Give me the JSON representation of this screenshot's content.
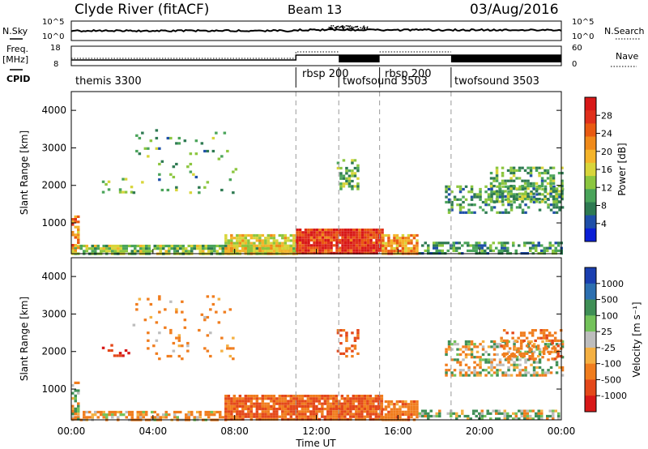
{
  "header": {
    "station": "Clyde River (fitACF)",
    "beam": "Beam 13",
    "date": "03/Aug/2016"
  },
  "params": {
    "nsky_label": "N.Sky",
    "nsky_ticks": [
      "10^5",
      "10^0"
    ],
    "nsearch_label": "N.Search",
    "freq_label": "Freq.",
    "freq_unit": "[MHz]",
    "freq_ticks": [
      "18",
      "8"
    ],
    "nave_label": "Nave",
    "nave_ticks": [
      "60",
      "0"
    ],
    "cpid_label": "CPID",
    "cpid_segments": [
      {
        "label": "themis 3300",
        "start": 0.0
      },
      {
        "label": "rbsp 200",
        "start": 11.0
      },
      {
        "label": "twofsound 3503",
        "start": 13.1
      },
      {
        "label": "rbsp 200",
        "start": 15.1
      },
      {
        "label": "twofsound 3503",
        "start": 18.6
      }
    ]
  },
  "colorbars": {
    "power": {
      "label": "Power [dB]",
      "ticks": [
        "28",
        "24",
        "20",
        "16",
        "12",
        "8",
        "4"
      ],
      "colors": [
        "#0b1fd6",
        "#1f4fa8",
        "#2e7a52",
        "#4aa45a",
        "#8cc63f",
        "#d8d53a",
        "#f4b42a",
        "#f08a1a",
        "#e95a12",
        "#e0301c",
        "#d81818"
      ]
    },
    "velocity": {
      "label": "Velocity [m s⁻¹]",
      "ticks": [
        "1000",
        "500",
        "100",
        "25",
        "-25",
        "-100",
        "-500",
        "-1000"
      ],
      "colors": [
        "#1a3fb0",
        "#2c6fb0",
        "#3f8f56",
        "#73c25a",
        "#bdbdbd",
        "#f4b042",
        "#f07d1e",
        "#e4481a",
        "#d81818"
      ]
    }
  },
  "chart_data": [
    {
      "type": "heatmap",
      "name": "power",
      "xlabel": "",
      "ylabel": "Slant Range [km]",
      "xlim": [
        0,
        24
      ],
      "ylim": [
        180,
        4500
      ],
      "yticks": [
        1000,
        2000,
        3000,
        4000
      ],
      "beam_lines": [
        11.0,
        13.1,
        15.1,
        18.6
      ],
      "bands": [
        {
          "x": [
            0,
            11
          ],
          "y": [
            180,
            420
          ],
          "level": 14,
          "density": 0.8
        },
        {
          "x": [
            0,
            0.3
          ],
          "y": [
            180,
            1200
          ],
          "level": 22,
          "density": 0.7
        },
        {
          "x": [
            7.5,
            11
          ],
          "y": [
            180,
            700
          ],
          "level": 18,
          "density": 0.85
        },
        {
          "x": [
            11,
            15.2
          ],
          "y": [
            180,
            850
          ],
          "level": 28,
          "density": 0.95
        },
        {
          "x": [
            15.2,
            17
          ],
          "y": [
            180,
            700
          ],
          "level": 22,
          "density": 0.8
        },
        {
          "x": [
            17,
            24
          ],
          "y": [
            180,
            500
          ],
          "level": 10,
          "density": 0.55
        },
        {
          "x": [
            18.3,
            24
          ],
          "y": [
            1300,
            2000
          ],
          "level": 10,
          "density": 0.45
        },
        {
          "x": [
            20.5,
            24
          ],
          "y": [
            1600,
            2500
          ],
          "level": 12,
          "density": 0.5
        },
        {
          "x": [
            13,
            14
          ],
          "y": [
            1900,
            2700
          ],
          "level": 12,
          "density": 0.5
        },
        {
          "x": [
            1.5,
            3
          ],
          "y": [
            1800,
            2200
          ],
          "level": 14,
          "density": 0.25
        },
        {
          "x": [
            3,
            8
          ],
          "y": [
            1800,
            3500
          ],
          "level": 12,
          "density": 0.06
        }
      ]
    },
    {
      "type": "heatmap",
      "name": "velocity",
      "xlabel": "Time UT",
      "ylabel": "Slant Range [km]",
      "xlim": [
        0,
        24
      ],
      "ylim": [
        180,
        4500
      ],
      "yticks": [
        1000,
        2000,
        3000,
        4000
      ],
      "xticks": [
        "00:00",
        "04:00",
        "08:00",
        "12:00",
        "16:00",
        "20:00",
        "00:00"
      ],
      "beam_lines": [
        11.0,
        13.1,
        15.1,
        18.6
      ],
      "bands": [
        {
          "x": [
            0,
            7.5
          ],
          "y": [
            180,
            420
          ],
          "level": -100,
          "density": 0.6
        },
        {
          "x": [
            0,
            0.4
          ],
          "y": [
            180,
            1200
          ],
          "level": 0,
          "density": 0.6
        },
        {
          "x": [
            7.5,
            15.2
          ],
          "y": [
            180,
            850
          ],
          "level": -300,
          "density": 0.9
        },
        {
          "x": [
            15.2,
            17
          ],
          "y": [
            180,
            700
          ],
          "level": -200,
          "density": 0.75
        },
        {
          "x": [
            17,
            24
          ],
          "y": [
            180,
            450
          ],
          "level": 50,
          "density": 0.5
        },
        {
          "x": [
            18.3,
            24
          ],
          "y": [
            1400,
            2300
          ],
          "level": 0,
          "density": 0.45
        },
        {
          "x": [
            21,
            24
          ],
          "y": [
            1800,
            2600
          ],
          "level": -200,
          "density": 0.4
        },
        {
          "x": [
            13,
            14
          ],
          "y": [
            1900,
            2600
          ],
          "level": -300,
          "density": 0.4
        },
        {
          "x": [
            1.5,
            3
          ],
          "y": [
            1900,
            2200
          ],
          "level": -800,
          "density": 0.3
        },
        {
          "x": [
            3,
            8
          ],
          "y": [
            1800,
            3500
          ],
          "level": -150,
          "density": 0.06
        }
      ]
    }
  ]
}
